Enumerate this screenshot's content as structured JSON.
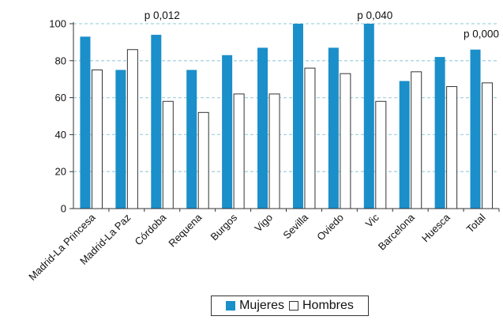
{
  "chart_data": {
    "type": "bar",
    "categories": [
      "Madrid-La Princesa",
      "Madrid-La Paz",
      "Córdoba",
      "Requena",
      "Burgos",
      "Vigo",
      "Sevilla",
      "Oviedo",
      "Vic",
      "Barcelona",
      "Huesca",
      "Total"
    ],
    "series": [
      {
        "name": "Mujeres",
        "color": "#1a8fc9",
        "values": [
          93,
          75,
          94,
          75,
          83,
          87,
          100,
          87,
          100,
          69,
          82,
          86
        ]
      },
      {
        "name": "Hombres",
        "color": "#ffffff",
        "values": [
          75,
          86,
          58,
          52,
          62,
          62,
          76,
          73,
          58,
          74,
          66,
          68
        ]
      }
    ],
    "ylim": [
      0,
      100
    ],
    "yticks": [
      "0",
      "20",
      "40",
      "60",
      "80",
      "100"
    ],
    "annotations": [
      {
        "text": "p 0,012",
        "category": "Córdoba",
        "value": 100
      },
      {
        "text": "p 0,040",
        "category": "Vic",
        "value": 100
      },
      {
        "text": "p 0,000",
        "category": "Total",
        "value": 90
      }
    ],
    "grid": "dashed horizontal"
  }
}
